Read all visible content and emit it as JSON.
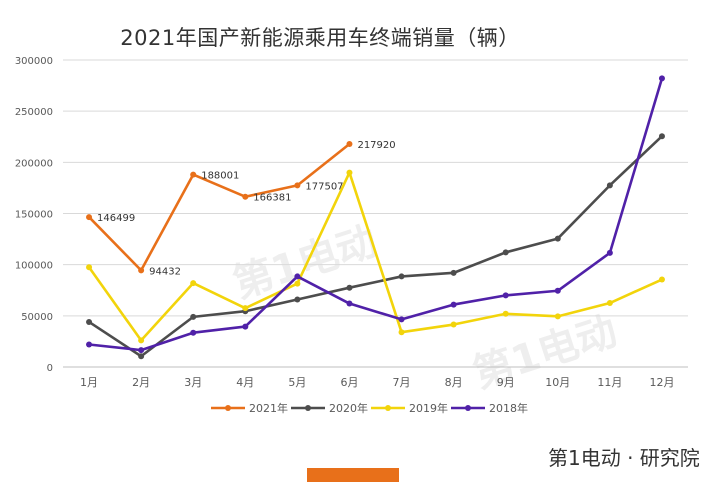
{
  "title": "2021年国产新能源乘用车终端销量（辆）",
  "brand": {
    "text": "第1电动 · 研究院",
    "accent_color": "#e8701a"
  },
  "watermark": "第1电动",
  "chart_data": {
    "type": "line",
    "title": "2021年国产新能源乘用车终端销量（辆）",
    "xlabel": "",
    "ylabel": "",
    "categories": [
      "1月",
      "2月",
      "3月",
      "4月",
      "5月",
      "6月",
      "7月",
      "8月",
      "9月",
      "10月",
      "11月",
      "12月"
    ],
    "ylim": [
      0,
      300000
    ],
    "yticks": [
      0,
      50000,
      100000,
      150000,
      200000,
      250000,
      300000
    ],
    "grid": true,
    "legend_position": "bottom",
    "series": [
      {
        "name": "2021年",
        "color": "#e8701a",
        "values": [
          146499,
          94432,
          188001,
          166381,
          177507,
          217920,
          null,
          null,
          null,
          null,
          null,
          null
        ],
        "data_labels": true
      },
      {
        "name": "2020年",
        "color": "#4d4d4d",
        "values": [
          44000,
          10500,
          49000,
          54500,
          66000,
          77500,
          88500,
          92000,
          112000,
          125500,
          177500,
          225500
        ],
        "data_labels": false
      },
      {
        "name": "2019年",
        "color": "#f2d40b",
        "values": [
          97500,
          26000,
          82000,
          57500,
          81500,
          190000,
          34000,
          41500,
          52000,
          49500,
          62500,
          85500
        ],
        "data_labels": false
      },
      {
        "name": "2018年",
        "color": "#5021a8",
        "values": [
          22000,
          16500,
          33500,
          39500,
          88500,
          62000,
          46500,
          61000,
          70000,
          74500,
          111500,
          282000
        ],
        "data_labels": false
      }
    ]
  }
}
